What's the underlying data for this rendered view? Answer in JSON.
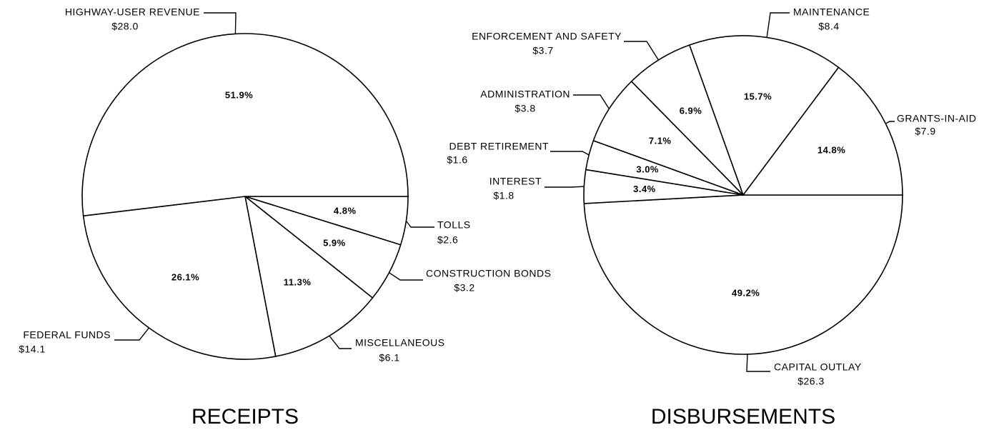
{
  "chart_data": [
    {
      "type": "pie",
      "title": "RECEIPTS",
      "categories": [
        "TOLLS",
        "CONSTRUCTION BONDS",
        "MISCELLANEOUS",
        "FEDERAL FUNDS",
        "HIGHWAY-USER REVENUE"
      ],
      "values": [
        4.8,
        5.9,
        11.3,
        26.1,
        51.9
      ],
      "value_labels": [
        "4.8%",
        "5.9%",
        "11.3%",
        "26.1%",
        "51.9%"
      ],
      "amount_labels": [
        "$2.6",
        "$3.2",
        "$6.1",
        "$14.1",
        "$28.0"
      ]
    },
    {
      "type": "pie",
      "title": "DISBURSEMENTS",
      "categories": [
        "CAPITAL OUTLAY",
        "INTEREST",
        "DEBT RETIREMENT",
        "ADMINISTRATION",
        "ENFORCEMENT AND SAFETY",
        "MAINTENANCE",
        "GRANTS-IN-AID"
      ],
      "values": [
        49.2,
        3.4,
        3.0,
        7.1,
        6.9,
        15.7,
        14.8
      ],
      "value_labels": [
        "49.2%",
        "3.4%",
        "3.0%",
        "7.1%",
        "6.9%",
        "15.7%",
        "14.8%"
      ],
      "amount_labels": [
        "$26.3",
        "$1.8",
        "$1.6",
        "$3.8",
        "$3.7",
        "$8.4",
        "$7.9"
      ]
    }
  ]
}
